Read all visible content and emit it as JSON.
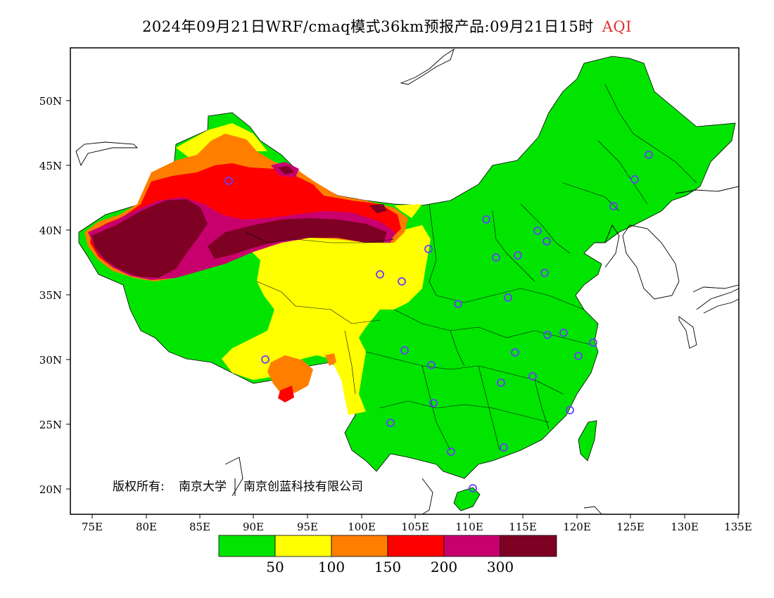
{
  "header": {
    "title": "2024年09月21日WRF/cmaq模式36km预报产品:09月21日15时",
    "variable": "AQI",
    "variable_color": "#e03030"
  },
  "map": {
    "lon_ticks": [
      "75E",
      "80E",
      "85E",
      "90E",
      "95E",
      "100E",
      "105E",
      "110E",
      "115E",
      "120E",
      "125E",
      "130E",
      "135E"
    ],
    "lat_ticks": [
      "50N",
      "45N",
      "40N",
      "35N",
      "30N",
      "25N",
      "20N"
    ],
    "copyright_label": "版权所有:",
    "copyright_org1": "南京大学",
    "copyright_org2": "南京创蓝科技有限公司",
    "background_fill": "#00e400"
  },
  "legend": {
    "colors": [
      "#00e400",
      "#ffff00",
      "#ff7e00",
      "#ff0000",
      "#c8006e",
      "#7e0023"
    ],
    "labels": [
      "50",
      "100",
      "150",
      "200",
      "300"
    ]
  }
}
